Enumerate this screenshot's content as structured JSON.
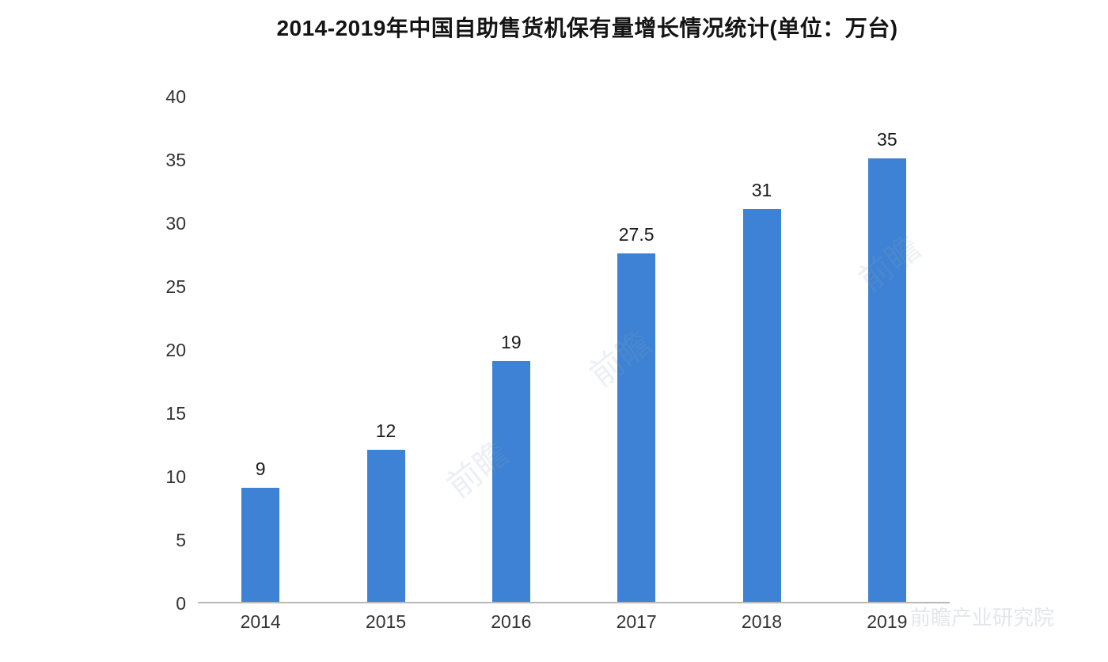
{
  "title": "2014-2019年中国自助售货机保有量增长情况统计(单位：万台)",
  "chart_data": {
    "type": "bar",
    "title": "2014-2019年中国自助售货机保有量增长情况统计(单位：万台)",
    "categories": [
      "2014",
      "2015",
      "2016",
      "2017",
      "2018",
      "2019"
    ],
    "values": [
      9,
      12,
      19,
      27.5,
      31,
      35
    ],
    "value_labels": [
      "9",
      "12",
      "19",
      "27.5",
      "31",
      "35"
    ],
    "xlabel": "",
    "ylabel": "",
    "ylim": [
      0,
      40
    ],
    "yticks": [
      0,
      5,
      10,
      15,
      20,
      25,
      30,
      35,
      40
    ],
    "bar_color": "#3d82d4",
    "axis_line_color": "#b8b8b8",
    "grid": false,
    "legend": "none"
  },
  "watermark": {
    "mark": "前瞻",
    "footer": "前瞻产业研究院"
  }
}
